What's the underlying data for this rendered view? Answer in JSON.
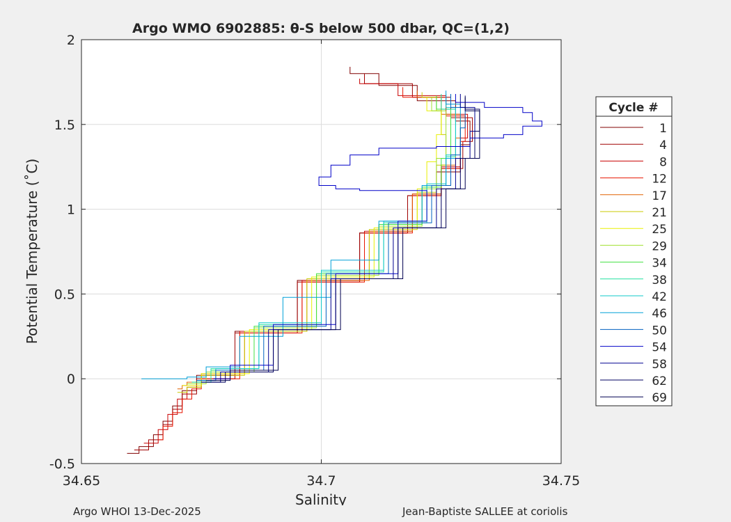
{
  "footer": {
    "left": "Argo WHOI 13-Dec-2025",
    "right": "Jean-Baptiste SALLEE at coriolis"
  },
  "chart_data": {
    "type": "line",
    "title": "Argo WMO 6902885: θ-S below 500 dbar,  QC=(1,2)",
    "xlabel": "Salinity",
    "ylabel": "Potential Temperature (˚C)",
    "xlim": [
      34.65,
      34.75
    ],
    "ylim": [
      -0.5,
      2.0
    ],
    "x_ticks": [
      34.65,
      34.7,
      34.75
    ],
    "x_tick_labels": [
      "34.65",
      "34.7",
      "34.75"
    ],
    "y_ticks": [
      -0.5,
      0,
      0.5,
      1,
      1.5,
      2
    ],
    "y_tick_labels": [
      "-0.5",
      "0",
      "0.5",
      "1",
      "1.5",
      "2"
    ],
    "grid": true,
    "legend_title": "Cycle #",
    "legend_position": "right-outside",
    "series": [
      {
        "name": "1",
        "color": "#800000",
        "points": [
          [
            34.6595,
            -0.44
          ],
          [
            34.662,
            -0.4
          ],
          [
            34.665,
            -0.33
          ],
          [
            34.667,
            -0.25
          ],
          [
            34.669,
            -0.16
          ],
          [
            34.671,
            -0.07
          ],
          [
            34.674,
            0.02
          ],
          [
            34.682,
            0.28
          ],
          [
            34.695,
            0.58
          ],
          [
            34.708,
            0.86
          ],
          [
            34.718,
            1.08
          ],
          [
            34.724,
            1.22
          ],
          [
            34.729,
            1.38
          ],
          [
            34.731,
            1.52
          ],
          [
            34.728,
            1.64
          ],
          [
            34.72,
            1.73
          ],
          [
            34.712,
            1.8
          ],
          [
            34.706,
            1.84
          ]
        ]
      },
      {
        "name": "4",
        "color": "#a00000",
        "points": [
          [
            34.661,
            -0.42
          ],
          [
            34.664,
            -0.36
          ],
          [
            34.667,
            -0.27
          ],
          [
            34.669,
            -0.18
          ],
          [
            34.671,
            -0.09
          ],
          [
            34.674,
            0.0
          ],
          [
            34.682,
            0.27
          ],
          [
            34.695,
            0.57
          ],
          [
            34.708,
            0.86
          ],
          [
            34.718,
            1.08
          ],
          [
            34.725,
            1.24
          ],
          [
            34.7295,
            1.4
          ],
          [
            34.7315,
            1.54
          ],
          [
            34.727,
            1.66
          ],
          [
            34.719,
            1.74
          ],
          [
            34.709,
            1.8
          ]
        ]
      },
      {
        "name": "8",
        "color": "#c80000",
        "points": [
          [
            34.663,
            -0.38
          ],
          [
            34.666,
            -0.3
          ],
          [
            34.668,
            -0.21
          ],
          [
            34.67,
            -0.12
          ],
          [
            34.672,
            -0.05
          ],
          [
            34.675,
            0.02
          ],
          [
            34.683,
            0.28
          ],
          [
            34.696,
            0.58
          ],
          [
            34.709,
            0.87
          ],
          [
            34.719,
            1.09
          ],
          [
            34.725,
            1.25
          ],
          [
            34.729,
            1.42
          ],
          [
            34.7305,
            1.56
          ],
          [
            34.726,
            1.67
          ],
          [
            34.716,
            1.74
          ],
          [
            34.708,
            1.77
          ]
        ]
      },
      {
        "name": "12",
        "color": "#e81500",
        "points": [
          [
            34.666,
            -0.36
          ],
          [
            34.667,
            -0.28
          ],
          [
            34.669,
            -0.2
          ],
          [
            34.671,
            -0.12
          ],
          [
            34.673,
            -0.06
          ],
          [
            34.675,
            0.0
          ],
          [
            34.683,
            0.27
          ],
          [
            34.696,
            0.57
          ],
          [
            34.709,
            0.86
          ],
          [
            34.719,
            1.08
          ],
          [
            34.725,
            1.24
          ],
          [
            34.729,
            1.4
          ],
          [
            34.73,
            1.55
          ],
          [
            34.726,
            1.66
          ],
          [
            34.717,
            1.72
          ]
        ]
      },
      {
        "name": "17",
        "color": "#e06000",
        "points": [
          [
            34.67,
            -0.06
          ],
          [
            34.671,
            -0.04
          ],
          [
            34.672,
            -0.02
          ],
          [
            34.675,
            0.03
          ],
          [
            34.684,
            0.28
          ],
          [
            34.697,
            0.58
          ],
          [
            34.71,
            0.87
          ],
          [
            34.719,
            1.09
          ],
          [
            34.725,
            1.26
          ],
          [
            34.728,
            1.42
          ],
          [
            34.729,
            1.56
          ],
          [
            34.725,
            1.66
          ],
          [
            34.72,
            1.7
          ]
        ]
      },
      {
        "name": "21",
        "color": "#c8c800",
        "points": [
          [
            34.67,
            -0.08
          ],
          [
            34.672,
            -0.05
          ],
          [
            34.675,
            0.02
          ],
          [
            34.684,
            0.28
          ],
          [
            34.697,
            0.59
          ],
          [
            34.71,
            0.88
          ],
          [
            34.72,
            1.1
          ],
          [
            34.724,
            1.26
          ],
          [
            34.726,
            1.44
          ],
          [
            34.725,
            1.58
          ],
          [
            34.724,
            1.66
          ],
          [
            34.721,
            1.69
          ]
        ]
      },
      {
        "name": "25",
        "color": "#e8f000",
        "points": [
          [
            34.671,
            -0.04
          ],
          [
            34.675,
            0.03
          ],
          [
            34.685,
            0.29
          ],
          [
            34.698,
            0.6
          ],
          [
            34.711,
            0.89
          ],
          [
            34.72,
            1.12
          ],
          [
            34.722,
            1.28
          ],
          [
            34.724,
            1.44
          ],
          [
            34.725,
            1.58
          ],
          [
            34.722,
            1.66
          ]
        ]
      },
      {
        "name": "29",
        "color": "#a0e030",
        "points": [
          [
            34.672,
            -0.03
          ],
          [
            34.676,
            0.04
          ],
          [
            34.686,
            0.3
          ],
          [
            34.699,
            0.61
          ],
          [
            34.712,
            0.9
          ],
          [
            34.721,
            1.12
          ],
          [
            34.724,
            1.3
          ],
          [
            34.726,
            1.45
          ],
          [
            34.726,
            1.58
          ],
          [
            34.723,
            1.66
          ]
        ]
      },
      {
        "name": "34",
        "color": "#40e040",
        "points": [
          [
            34.673,
            -0.02
          ],
          [
            34.677,
            0.05
          ],
          [
            34.686,
            0.31
          ],
          [
            34.699,
            0.62
          ],
          [
            34.712,
            0.91
          ],
          [
            34.721,
            1.13
          ],
          [
            34.725,
            1.3
          ],
          [
            34.727,
            1.46
          ],
          [
            34.727,
            1.59
          ],
          [
            34.724,
            1.67
          ]
        ]
      },
      {
        "name": "38",
        "color": "#20e0a0",
        "points": [
          [
            34.673,
            -0.02
          ],
          [
            34.677,
            0.06
          ],
          [
            34.687,
            0.32
          ],
          [
            34.7,
            0.63
          ],
          [
            34.713,
            0.92
          ],
          [
            34.722,
            1.14
          ],
          [
            34.726,
            1.31
          ],
          [
            34.728,
            1.46
          ],
          [
            34.728,
            1.59
          ],
          [
            34.725,
            1.68
          ]
        ]
      },
      {
        "name": "42",
        "color": "#10c8c8",
        "points": [
          [
            34.674,
            -0.01
          ],
          [
            34.678,
            0.06
          ],
          [
            34.687,
            0.33
          ],
          [
            34.7,
            0.64
          ],
          [
            34.713,
            0.93
          ],
          [
            34.722,
            1.15
          ],
          [
            34.726,
            1.32
          ],
          [
            34.728,
            1.47
          ],
          [
            34.728,
            1.6
          ],
          [
            34.726,
            1.68
          ]
        ]
      },
      {
        "name": "46",
        "color": "#00a0d8",
        "points": [
          [
            34.6625,
            0.0
          ],
          [
            34.667,
            0.0
          ],
          [
            34.672,
            0.01
          ],
          [
            34.676,
            0.07
          ],
          [
            34.683,
            0.25
          ],
          [
            34.692,
            0.48
          ],
          [
            34.702,
            0.7
          ],
          [
            34.712,
            0.93
          ],
          [
            34.721,
            1.14
          ],
          [
            34.726,
            1.3
          ],
          [
            34.729,
            1.48
          ],
          [
            34.729,
            1.62
          ],
          [
            34.726,
            1.7
          ]
        ]
      },
      {
        "name": "50",
        "color": "#0060c0",
        "points": [
          [
            34.674,
            -0.01
          ],
          [
            34.678,
            0.05
          ],
          [
            34.688,
            0.31
          ],
          [
            34.701,
            0.62
          ],
          [
            34.714,
            0.92
          ],
          [
            34.723,
            1.14
          ],
          [
            34.727,
            1.32
          ],
          [
            34.729,
            1.48
          ],
          [
            34.73,
            1.6
          ],
          [
            34.727,
            1.68
          ]
        ]
      },
      {
        "name": "54",
        "color": "#0000c8",
        "points": [
          [
            34.6775,
            0.0
          ],
          [
            34.681,
            0.08
          ],
          [
            34.69,
            0.32
          ],
          [
            34.703,
            0.62
          ],
          [
            34.716,
            0.93
          ],
          [
            34.722,
            1.11
          ],
          [
            34.708,
            1.12
          ],
          [
            34.703,
            1.14
          ],
          [
            34.6995,
            1.19
          ],
          [
            34.702,
            1.26
          ],
          [
            34.706,
            1.32
          ],
          [
            34.712,
            1.36
          ],
          [
            34.724,
            1.37
          ],
          [
            34.731,
            1.42
          ],
          [
            34.738,
            1.44
          ],
          [
            34.742,
            1.49
          ],
          [
            34.746,
            1.52
          ],
          [
            34.744,
            1.57
          ],
          [
            34.742,
            1.6
          ],
          [
            34.734,
            1.63
          ],
          [
            34.728,
            1.68
          ]
        ]
      },
      {
        "name": "58",
        "color": "#000090",
        "points": [
          [
            34.675,
            -0.02
          ],
          [
            34.679,
            0.04
          ],
          [
            34.689,
            0.29
          ],
          [
            34.702,
            0.59
          ],
          [
            34.715,
            0.89
          ],
          [
            34.724,
            1.12
          ],
          [
            34.728,
            1.3
          ],
          [
            34.731,
            1.46
          ],
          [
            34.732,
            1.6
          ],
          [
            34.729,
            1.68
          ]
        ]
      },
      {
        "name": "62",
        "color": "#000060",
        "points": [
          [
            34.675,
            -0.02
          ],
          [
            34.68,
            0.04
          ],
          [
            34.69,
            0.29
          ],
          [
            34.703,
            0.59
          ],
          [
            34.716,
            0.89
          ],
          [
            34.725,
            1.12
          ],
          [
            34.729,
            1.3
          ],
          [
            34.732,
            1.46
          ],
          [
            34.733,
            1.59
          ],
          [
            34.73,
            1.67
          ]
        ]
      },
      {
        "name": "69",
        "color": "#000050",
        "points": [
          [
            34.676,
            -0.01
          ],
          [
            34.681,
            0.05
          ],
          [
            34.691,
            0.29
          ],
          [
            34.704,
            0.59
          ],
          [
            34.717,
            0.89
          ],
          [
            34.726,
            1.12
          ],
          [
            34.73,
            1.3
          ],
          [
            34.733,
            1.45
          ],
          [
            34.733,
            1.58
          ],
          [
            34.73,
            1.66
          ]
        ]
      }
    ]
  }
}
